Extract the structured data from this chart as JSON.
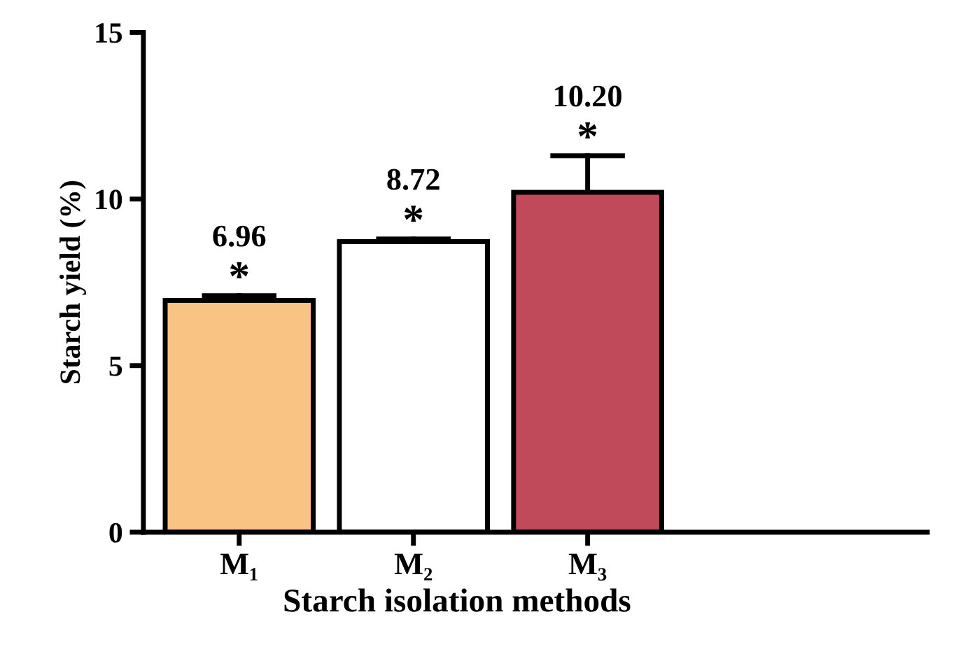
{
  "chart_data": {
    "type": "bar",
    "xlabel": "Starch isolation methods",
    "ylabel": "Starch yield (%)",
    "categories": [
      "M₁",
      "M₂",
      "M₃"
    ],
    "values": [
      6.96,
      8.72,
      10.2
    ],
    "colors": [
      "#f8c383",
      "#ffffff",
      "#c0495a"
    ],
    "errors": [
      [
        6.96,
        7.1
      ],
      [
        8.72,
        8.8
      ],
      [
        10.2,
        11.3
      ]
    ],
    "value_labels": [
      "6.96",
      "8.72",
      "10.20"
    ],
    "annotations": [
      {
        "text": "*",
        "x": "M₁",
        "y": 7.1
      },
      {
        "text": "*",
        "x": "M₂",
        "y": 8.8
      },
      {
        "text": "*",
        "x": "M₃",
        "y": 11.3
      }
    ],
    "ylim": [
      0,
      15
    ],
    "yticks": [
      0,
      5,
      10,
      15
    ],
    "grid": false
  }
}
